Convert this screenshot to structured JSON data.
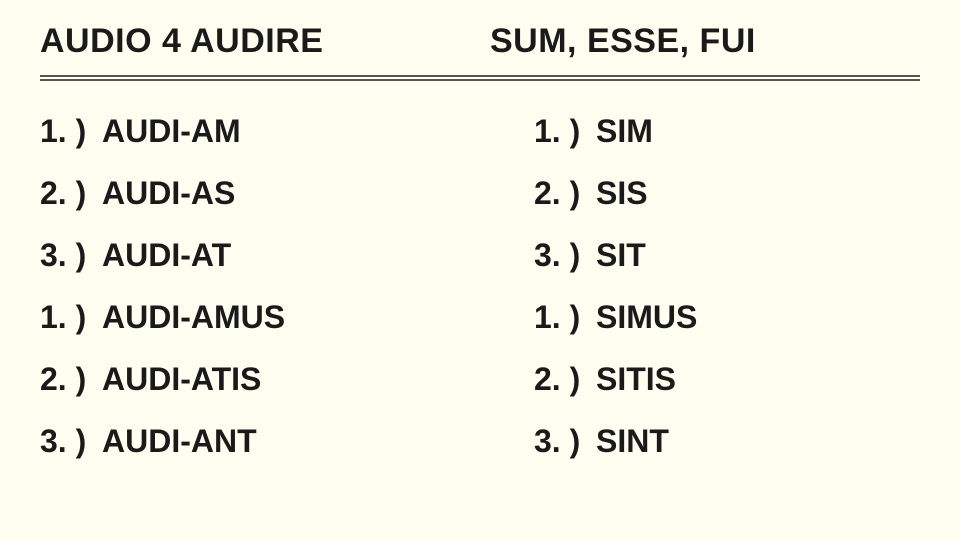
{
  "background_color": "#fdfdf0",
  "text_color": "#1a1a1a",
  "divider_color": "#555555",
  "font_family": "Comic Sans MS",
  "header_fontsize": 34,
  "row_fontsize": 32,
  "headers": {
    "left": "AUDIO 4 AUDIRE",
    "right": "SUM, ESSE, FUI"
  },
  "columns": {
    "left": [
      {
        "num": "1. )",
        "text": "AUDI-AM"
      },
      {
        "num": "2. )",
        "text": "AUDI-AS"
      },
      {
        "num": "3. )",
        "text": "AUDI-AT"
      },
      {
        "num": "1. )",
        "text": "AUDI-AMUS"
      },
      {
        "num": "2. )",
        "text": "AUDI-ATIS"
      },
      {
        "num": "3. )",
        "text": "AUDI-ANT"
      }
    ],
    "right": [
      {
        "num": "1. )",
        "text": "SIM"
      },
      {
        "num": "2. )",
        "text": "SIS"
      },
      {
        "num": "3. )",
        "text": "SIT"
      },
      {
        "num": "1. )",
        "text": "SIMUS"
      },
      {
        "num": "2. )",
        "text": "SITIS"
      },
      {
        "num": "3. )",
        "text": "SINT"
      }
    ]
  }
}
